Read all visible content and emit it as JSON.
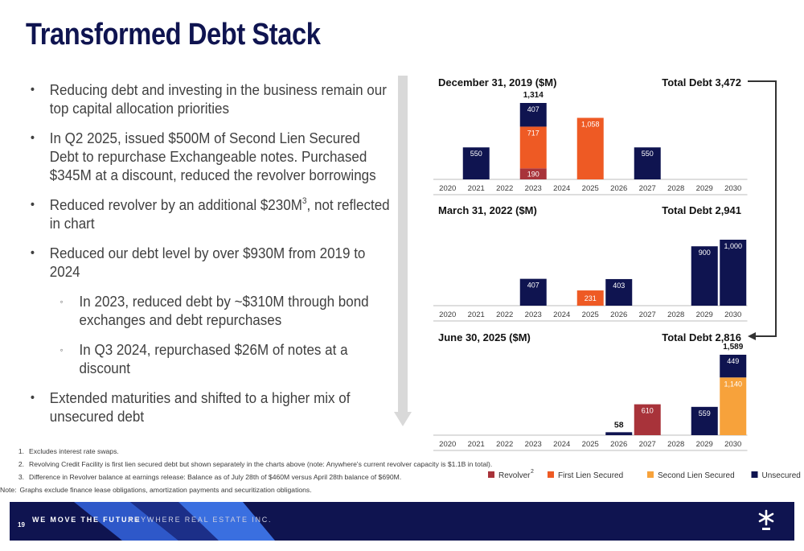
{
  "slide": {
    "title": "Transformed Debt Stack",
    "page_number": "19",
    "footer_tagline": "WE MOVE THE FUTURE",
    "footer_company": "ANYWHERE REAL ESTATE INC."
  },
  "bullets": [
    {
      "text": "Reducing debt and investing in the business remain our top capital allocation priorities",
      "level": 1
    },
    {
      "text": "In Q2 2025, issued $500M of Second Lien Secured Debt to repurchase Exchangeable notes. Purchased $345M at a discount, reduced the revolver borrowings",
      "level": 1
    },
    {
      "text": "Reduced revolver by an additional $230M",
      "sup": "3",
      "text_after": ", not reflected in chart",
      "level": 1
    },
    {
      "text": "Reduced our debt level by over $930M from 2019 to 2024",
      "level": 1
    },
    {
      "text": "In 2023, reduced debt by ~$310M through bond exchanges and debt repurchases",
      "level": 2
    },
    {
      "text": "In Q3 2024, repurchased $26M of notes at a discount",
      "level": 2
    },
    {
      "text": "Extended maturities and shifted to a higher mix of unsecured debt",
      "level": 1
    }
  ],
  "footnotes": [
    {
      "num": "1.",
      "text": "Excludes interest rate swaps."
    },
    {
      "num": "2.",
      "text": "Revolving Credit Facility is first lien secured debt but shown separately in the charts above (note: Anywhere's current revolver capacity is $1.1B in total)."
    },
    {
      "num": "3.",
      "text": "Difference in Revolver balance at earnings release: Balance as of July 28th of $460M  versus April 28th balance of $690M."
    },
    {
      "num": "Note:",
      "text": "Graphs exclude finance lease obligations, amortization payments and securitization obligations."
    }
  ],
  "colors": {
    "revolver": "#a8333a",
    "first_lien": "#ee5a24",
    "second_lien": "#f7a23b",
    "unsecured": "#0f1450",
    "axis_text": "#3a3a3a"
  },
  "chart_data": [
    {
      "type": "bar",
      "stacked": true,
      "title": "December 31, 2019 ($M)",
      "total_label": "Total Debt 3,472",
      "categories": [
        "2020",
        "2021",
        "2022",
        "2023",
        "2024",
        "2025",
        "2026",
        "2027",
        "2028",
        "2029",
        "2030"
      ],
      "series": [
        {
          "name": "Revolver",
          "values": [
            0,
            0,
            0,
            190,
            0,
            0,
            0,
            0,
            0,
            0,
            0
          ]
        },
        {
          "name": "First Lien Secured",
          "values": [
            0,
            0,
            0,
            717,
            0,
            1058,
            0,
            0,
            0,
            0,
            0
          ]
        },
        {
          "name": "Second Lien Secured",
          "values": [
            0,
            0,
            0,
            0,
            0,
            0,
            0,
            0,
            0,
            0,
            0
          ]
        },
        {
          "name": "Unsecured",
          "values": [
            0,
            550,
            0,
            407,
            0,
            0,
            0,
            550,
            0,
            0,
            0
          ]
        }
      ],
      "totals": [
        {
          "category": "2023",
          "value": "1,314"
        }
      ],
      "ylim": [
        0,
        1400
      ]
    },
    {
      "type": "bar",
      "stacked": true,
      "title": "March 31, 2022 ($M)",
      "total_label": "Total Debt 2,941",
      "categories": [
        "2020",
        "2021",
        "2022",
        "2023",
        "2024",
        "2025",
        "2026",
        "2027",
        "2028",
        "2029",
        "2030"
      ],
      "series": [
        {
          "name": "Revolver",
          "values": [
            0,
            0,
            0,
            0,
            0,
            0,
            0,
            0,
            0,
            0,
            0
          ]
        },
        {
          "name": "First Lien Secured",
          "values": [
            0,
            0,
            0,
            0,
            0,
            231,
            0,
            0,
            0,
            0,
            0
          ]
        },
        {
          "name": "Second Lien Secured",
          "values": [
            0,
            0,
            0,
            0,
            0,
            0,
            0,
            0,
            0,
            0,
            0
          ]
        },
        {
          "name": "Unsecured",
          "values": [
            0,
            0,
            0,
            407,
            0,
            0,
            403,
            0,
            0,
            900,
            1000
          ]
        }
      ],
      "totals": [],
      "ylim": [
        0,
        1100
      ]
    },
    {
      "type": "bar",
      "stacked": true,
      "title": "June 30, 2025 ($M)",
      "total_label": "Total Debt 2,816",
      "categories": [
        "2020",
        "2021",
        "2022",
        "2023",
        "2024",
        "2025",
        "2026",
        "2027",
        "2028",
        "2029",
        "2030"
      ],
      "series": [
        {
          "name": "Revolver",
          "values": [
            0,
            0,
            0,
            0,
            0,
            0,
            0,
            610,
            0,
            0,
            0
          ]
        },
        {
          "name": "First Lien Secured",
          "values": [
            0,
            0,
            0,
            0,
            0,
            0,
            0,
            0,
            0,
            0,
            0
          ]
        },
        {
          "name": "Second Lien Secured",
          "values": [
            0,
            0,
            0,
            0,
            0,
            0,
            0,
            0,
            0,
            0,
            1140
          ]
        },
        {
          "name": "Unsecured",
          "values": [
            0,
            0,
            0,
            0,
            0,
            0,
            58,
            0,
            0,
            559,
            449
          ]
        }
      ],
      "totals": [
        {
          "category": "2030",
          "value": "1,589"
        }
      ],
      "outside_labels": [
        {
          "category": "2026",
          "value": "58"
        }
      ],
      "ylim": [
        0,
        1600
      ]
    }
  ],
  "legend": [
    {
      "name": "Revolver",
      "sup": "2",
      "color": "#a8333a"
    },
    {
      "name": "First Lien Secured",
      "color": "#ee5a24"
    },
    {
      "name": "Second Lien Secured",
      "color": "#f7a23b"
    },
    {
      "name": "Unsecured",
      "color": "#0f1450"
    }
  ]
}
